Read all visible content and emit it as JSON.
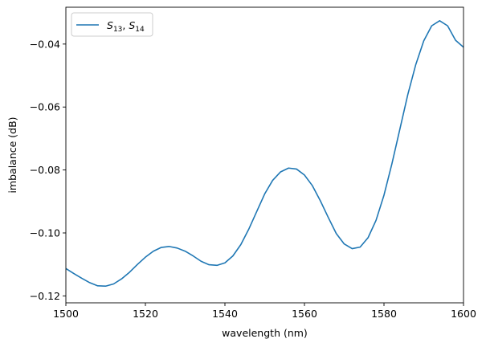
{
  "chart_data": {
    "type": "line",
    "xlabel": "wavelength (nm)",
    "ylabel": "imbalance (dB)",
    "xlim": [
      1500,
      1600
    ],
    "ylim": [
      -0.1222,
      -0.0283
    ],
    "xticks": [
      1500,
      1520,
      1540,
      1560,
      1580,
      1600
    ],
    "xtick_labels": [
      "1500",
      "1520",
      "1540",
      "1560",
      "1580",
      "1600"
    ],
    "yticks": [
      -0.12,
      -0.1,
      -0.08,
      -0.06,
      -0.04
    ],
    "ytick_labels": [
      "−0.12",
      "−0.10",
      "−0.08",
      "−0.06",
      "−0.04"
    ],
    "grid": false,
    "legend_position": "top-left",
    "series": [
      {
        "name": "S13, S14",
        "legend_main": [
          "S",
          "S"
        ],
        "legend_subs": [
          "13",
          "14"
        ],
        "color": "#1f77b4",
        "x": [
          1500,
          1502,
          1504,
          1506,
          1508,
          1510,
          1512,
          1514,
          1516,
          1518,
          1520,
          1522,
          1524,
          1526,
          1528,
          1530,
          1532,
          1534,
          1536,
          1538,
          1540,
          1542,
          1544,
          1546,
          1548,
          1550,
          1552,
          1554,
          1556,
          1558,
          1560,
          1562,
          1564,
          1566,
          1568,
          1570,
          1572,
          1574,
          1576,
          1578,
          1580,
          1582,
          1584,
          1586,
          1588,
          1590,
          1592,
          1594,
          1596,
          1598,
          1600
        ],
        "y": [
          -0.1113,
          -0.1129,
          -0.1144,
          -0.1158,
          -0.1168,
          -0.1169,
          -0.1162,
          -0.1146,
          -0.1125,
          -0.11,
          -0.1077,
          -0.1058,
          -0.1046,
          -0.1043,
          -0.1048,
          -0.1058,
          -0.1073,
          -0.109,
          -0.1101,
          -0.1103,
          -0.1095,
          -0.1073,
          -0.1037,
          -0.0988,
          -0.0932,
          -0.0876,
          -0.0833,
          -0.0806,
          -0.0794,
          -0.0797,
          -0.0816,
          -0.085,
          -0.0898,
          -0.0951,
          -0.1002,
          -0.1035,
          -0.105,
          -0.1045,
          -0.1015,
          -0.096,
          -0.088,
          -0.078,
          -0.067,
          -0.056,
          -0.0465,
          -0.039,
          -0.0342,
          -0.0326,
          -0.0342,
          -0.0388,
          -0.041
        ]
      }
    ]
  }
}
